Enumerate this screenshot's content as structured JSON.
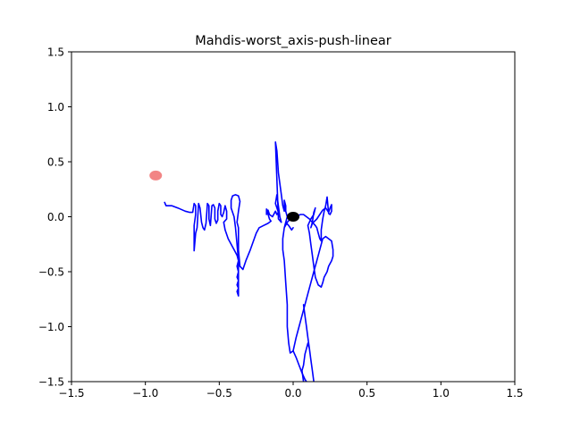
{
  "chart_data": {
    "type": "line",
    "title": "Mahdis-worst_axis-push-linear",
    "xlabel": "",
    "ylabel": "",
    "xlim": [
      -1.5,
      1.5
    ],
    "ylim": [
      -1.5,
      1.5
    ],
    "xticks": [
      -1.5,
      -1.0,
      -0.5,
      0.0,
      0.5,
      1.0,
      1.5
    ],
    "yticks": [
      -1.5,
      -1.0,
      -0.5,
      0.0,
      0.5,
      1.0,
      1.5
    ],
    "xtick_labels": [
      "−1.5",
      "−1.0",
      "−0.5",
      "0.0",
      "0.5",
      "1.0",
      "1.5"
    ],
    "ytick_labels": [
      "−1.5",
      "−1.0",
      "−0.5",
      "0.0",
      "0.5",
      "1.0",
      "1.5"
    ],
    "grid": false,
    "series": [
      {
        "color": "#0000ff",
        "points": [
          [
            -0.87,
            0.13
          ],
          [
            -0.86,
            0.1
          ],
          [
            -0.82,
            0.1
          ],
          [
            -0.78,
            0.08
          ],
          [
            -0.73,
            0.05
          ],
          [
            -0.7,
            0.04
          ],
          [
            -0.68,
            0.04
          ],
          [
            -0.67,
            0.12
          ],
          [
            -0.66,
            0.1
          ],
          [
            -0.66,
            0.02
          ],
          [
            -0.67,
            -0.08
          ],
          [
            -0.67,
            -0.31
          ],
          [
            -0.66,
            -0.15
          ],
          [
            -0.65,
            -0.1
          ],
          [
            -0.64,
            0.12
          ],
          [
            -0.63,
            0.08
          ],
          [
            -0.62,
            -0.05
          ],
          [
            -0.61,
            -0.1
          ],
          [
            -0.6,
            -0.12
          ],
          [
            -0.59,
            -0.06
          ],
          [
            -0.58,
            0.12
          ],
          [
            -0.57,
            0.1
          ],
          [
            -0.57,
            -0.02
          ],
          [
            -0.56,
            -0.08
          ],
          [
            -0.55,
            0.1
          ],
          [
            -0.54,
            0.11
          ],
          [
            -0.53,
            0.08
          ],
          [
            -0.53,
            -0.02
          ],
          [
            -0.52,
            -0.06
          ],
          [
            -0.51,
            -0.03
          ],
          [
            -0.51,
            0.05
          ],
          [
            -0.5,
            0.12
          ],
          [
            -0.49,
            0.1
          ],
          [
            -0.49,
            0.02
          ],
          [
            -0.48,
            0.0
          ],
          [
            -0.47,
            0.04
          ],
          [
            -0.46,
            0.1
          ],
          [
            -0.45,
            0.05
          ],
          [
            -0.45,
            -0.02
          ],
          [
            -0.47,
            -0.05
          ],
          [
            -0.46,
            -0.12
          ],
          [
            -0.44,
            -0.2
          ],
          [
            -0.4,
            -0.3
          ],
          [
            -0.38,
            -0.35
          ],
          [
            -0.37,
            -0.4
          ],
          [
            -0.38,
            -0.45
          ],
          [
            -0.37,
            -0.5
          ],
          [
            -0.38,
            -0.55
          ],
          [
            -0.37,
            -0.58
          ],
          [
            -0.38,
            -0.62
          ],
          [
            -0.37,
            -0.65
          ],
          [
            -0.38,
            -0.68
          ],
          [
            -0.37,
            -0.72
          ],
          [
            -0.37,
            -0.6
          ],
          [
            -0.37,
            -0.4
          ],
          [
            -0.38,
            -0.25
          ],
          [
            -0.39,
            -0.1
          ],
          [
            -0.4,
            0.0
          ],
          [
            -0.42,
            0.08
          ],
          [
            -0.42,
            0.15
          ],
          [
            -0.41,
            0.19
          ],
          [
            -0.39,
            0.2
          ],
          [
            -0.37,
            0.19
          ],
          [
            -0.36,
            0.14
          ],
          [
            -0.37,
            0.05
          ],
          [
            -0.38,
            -0.05
          ],
          [
            -0.37,
            -0.1
          ],
          [
            -0.37,
            -0.2
          ],
          [
            -0.37,
            -0.3
          ],
          [
            -0.36,
            -0.45
          ],
          [
            -0.34,
            -0.48
          ],
          [
            -0.32,
            -0.4
          ],
          [
            -0.29,
            -0.3
          ],
          [
            -0.25,
            -0.15
          ],
          [
            -0.23,
            -0.1
          ],
          [
            -0.2,
            -0.08
          ],
          [
            -0.17,
            -0.06
          ],
          [
            -0.15,
            -0.04
          ],
          [
            -0.16,
            -0.02
          ],
          [
            -0.18,
            0.07
          ],
          [
            -0.18,
            0.02
          ],
          [
            -0.17,
            0.06
          ],
          [
            -0.16,
            0.02
          ],
          [
            -0.14,
            0.0
          ],
          [
            -0.12,
            0.05
          ],
          [
            -0.11,
            0.02
          ],
          [
            -0.1,
            0.04
          ],
          [
            -0.12,
            0.12
          ],
          [
            -0.11,
            0.2
          ],
          [
            -0.09,
            0.0
          ],
          [
            -0.08,
            -0.05
          ],
          [
            -0.1,
            -0.02
          ],
          [
            -0.12,
            0.68
          ],
          [
            -0.11,
            0.6
          ],
          [
            -0.1,
            0.4
          ],
          [
            -0.08,
            0.2
          ],
          [
            -0.07,
            0.1
          ],
          [
            -0.06,
            0.05
          ],
          [
            -0.06,
            0.15
          ],
          [
            -0.05,
            0.1
          ],
          [
            -0.05,
            0.05
          ],
          [
            -0.04,
            0.0
          ],
          [
            -0.06,
            -0.1
          ],
          [
            -0.07,
            -0.2
          ],
          [
            -0.07,
            -0.3
          ],
          [
            -0.06,
            -0.4
          ],
          [
            -0.05,
            -0.6
          ],
          [
            -0.04,
            -0.8
          ],
          [
            -0.04,
            -1.0
          ],
          [
            -0.03,
            -1.15
          ],
          [
            -0.02,
            -1.24
          ],
          [
            0.0,
            -1.22
          ],
          [
            0.02,
            -1.1
          ],
          [
            0.04,
            -1.0
          ],
          [
            0.06,
            -0.9
          ],
          [
            0.08,
            -0.8
          ],
          [
            0.1,
            -0.7
          ],
          [
            0.12,
            -0.6
          ],
          [
            0.14,
            -0.5
          ],
          [
            0.16,
            -0.4
          ],
          [
            0.18,
            -0.3
          ],
          [
            0.2,
            -0.2
          ],
          [
            0.22,
            -0.18
          ],
          [
            0.24,
            -0.2
          ],
          [
            0.26,
            -0.22
          ],
          [
            0.27,
            -0.3
          ],
          [
            0.27,
            -0.36
          ],
          [
            0.26,
            -0.4
          ],
          [
            0.24,
            -0.45
          ],
          [
            0.23,
            -0.5
          ],
          [
            0.21,
            -0.55
          ],
          [
            0.2,
            -0.6
          ],
          [
            0.19,
            -0.64
          ],
          [
            0.17,
            -0.62
          ],
          [
            0.15,
            -0.55
          ],
          [
            0.14,
            -0.45
          ],
          [
            0.13,
            -0.35
          ],
          [
            0.12,
            -0.25
          ],
          [
            0.11,
            -0.15
          ],
          [
            0.1,
            -0.08
          ],
          [
            0.12,
            -0.02
          ],
          [
            0.14,
            0.02
          ],
          [
            0.15,
            0.08
          ],
          [
            0.14,
            0.04
          ],
          [
            0.13,
            -0.05
          ],
          [
            0.12,
            -0.1
          ],
          [
            0.13,
            -0.06
          ],
          [
            0.16,
            -0.02
          ],
          [
            0.18,
            0.02
          ],
          [
            0.2,
            0.06
          ],
          [
            0.22,
            0.08
          ],
          [
            0.24,
            0.04
          ],
          [
            0.25,
            0.08
          ],
          [
            0.26,
            0.11
          ],
          [
            0.26,
            0.05
          ],
          [
            0.25,
            0.02
          ],
          [
            0.24,
            0.03
          ],
          [
            0.23,
            0.18
          ],
          [
            0.22,
            0.1
          ],
          [
            0.21,
            0.05
          ],
          [
            0.2,
            -0.02
          ],
          [
            0.19,
            -0.12
          ],
          [
            0.19,
            -0.22
          ],
          [
            0.18,
            -0.2
          ],
          [
            0.17,
            -0.15
          ],
          [
            0.16,
            -0.1
          ],
          [
            0.15,
            -0.08
          ],
          [
            0.13,
            -0.05
          ],
          [
            0.11,
            -0.02
          ],
          [
            0.09,
            0.0
          ],
          [
            0.07,
            0.02
          ],
          [
            0.05,
            0.02
          ],
          [
            0.03,
            0.01
          ],
          [
            0.01,
            0.0
          ],
          [
            -0.02,
            -0.02
          ],
          [
            -0.04,
            -0.05
          ],
          [
            -0.06,
            -0.1
          ],
          [
            -0.05,
            -0.05
          ],
          [
            -0.03,
            -0.08
          ],
          [
            -0.01,
            -0.12
          ],
          [
            0.0,
            -0.1
          ]
        ]
      },
      {
        "color": "#0000ff",
        "points": [
          [
            0.07,
            -0.8
          ],
          [
            0.08,
            -0.9
          ],
          [
            0.09,
            -1.0
          ],
          [
            0.1,
            -1.1
          ],
          [
            0.11,
            -1.2
          ],
          [
            0.12,
            -1.3
          ],
          [
            0.13,
            -1.4
          ],
          [
            0.14,
            -1.5
          ],
          [
            0.13,
            -1.4
          ],
          [
            0.12,
            -1.3
          ],
          [
            0.11,
            -1.2
          ],
          [
            0.1,
            -1.15
          ],
          [
            0.09,
            -1.2
          ],
          [
            0.08,
            -1.25
          ],
          [
            0.07,
            -1.35
          ],
          [
            0.06,
            -1.4
          ],
          [
            0.07,
            -1.5
          ]
        ]
      },
      {
        "color": "#0000ff",
        "points": [
          [
            0.0,
            -1.22
          ],
          [
            0.02,
            -1.28
          ],
          [
            0.04,
            -1.35
          ],
          [
            0.06,
            -1.42
          ],
          [
            0.08,
            -1.48
          ],
          [
            0.09,
            -1.5
          ]
        ]
      }
    ],
    "markers": [
      {
        "x": -0.93,
        "y": 0.375,
        "color": "#f07070",
        "opacity": 0.85
      },
      {
        "x": 0.0,
        "y": 0.0,
        "color": "#000000",
        "opacity": 1.0
      }
    ]
  }
}
